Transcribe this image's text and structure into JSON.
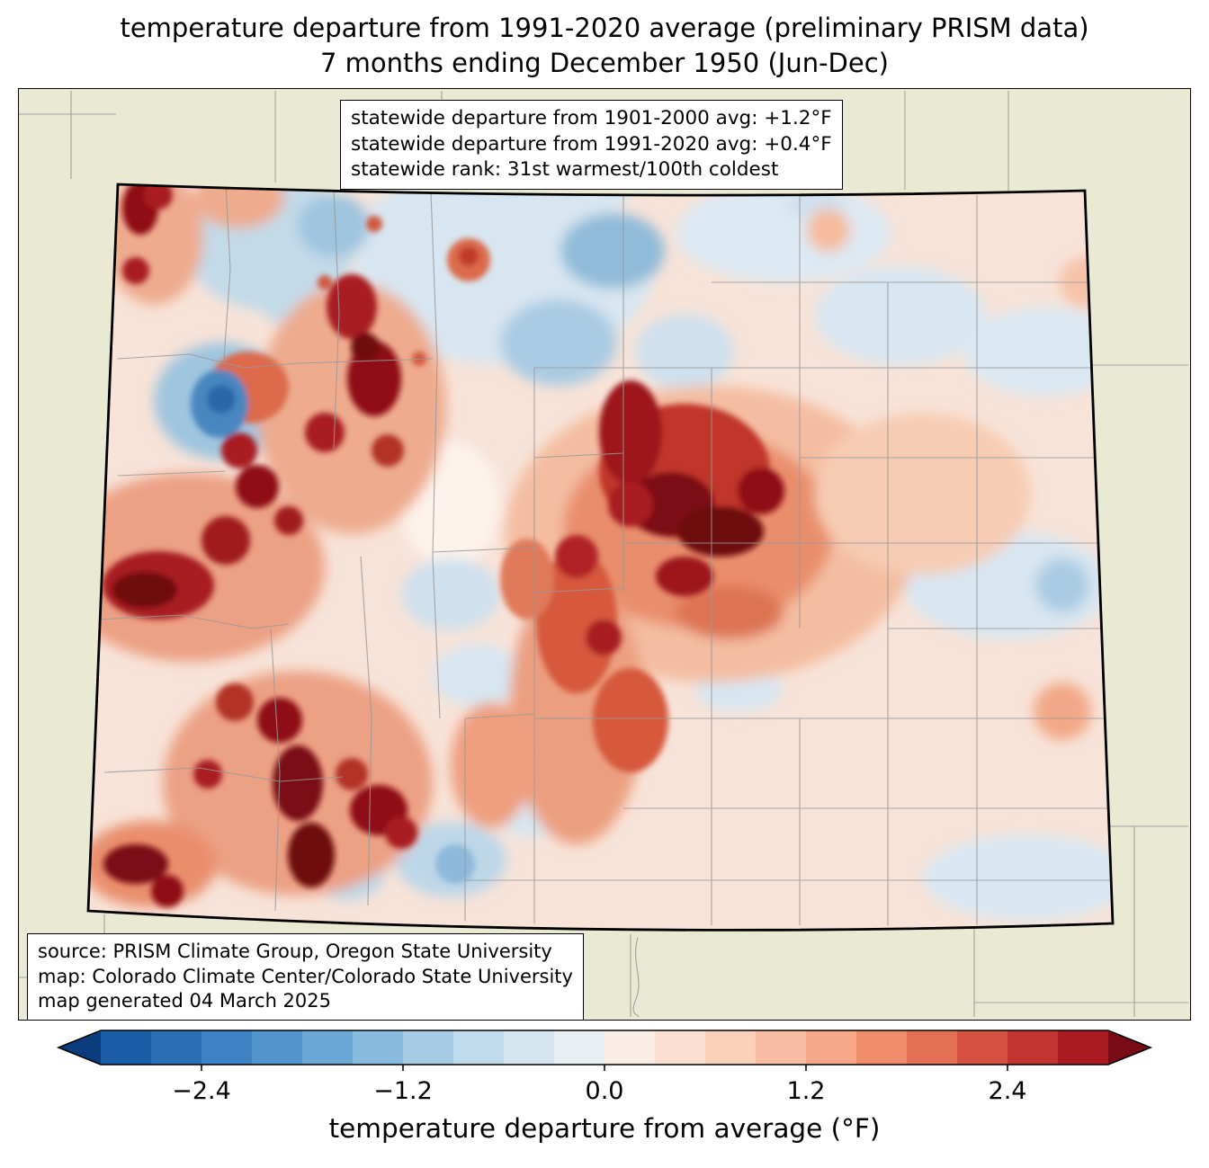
{
  "title": {
    "line1": "temperature departure from 1991-2020 average (preliminary PRISM data)",
    "line2": "7 months ending December 1950 (Jun-Dec)"
  },
  "stats_box": {
    "line1": "statewide departure from 1901-2000 avg: +1.2°F",
    "line2": "statewide departure from 1991-2020 avg: +0.4°F",
    "line3": "statewide rank: 31st warmest/100th coldest"
  },
  "source_box": {
    "line1": "source: PRISM Climate Group, Oregon State University",
    "line2": "map: Colorado Climate Center/Colorado State University",
    "line3": "map generated 04 March 2025"
  },
  "map": {
    "region": "Colorado",
    "background_color": "#e9e9d4",
    "county_line_color": "#999999",
    "state_border_color": "#000000"
  },
  "colorbar": {
    "label": "temperature departure from average (°F)",
    "ticks": [
      "−2.4",
      "−1.2",
      "0.0",
      "1.2",
      "2.4"
    ],
    "tick_values": [
      -2.4,
      -1.2,
      0.0,
      1.2,
      2.4
    ],
    "range": [
      -3.0,
      3.0
    ],
    "segment_colors": [
      "#1a5da6",
      "#2b6fb5",
      "#3c82c4",
      "#5295cd",
      "#6ba8d6",
      "#88bbde",
      "#a5cce4",
      "#c0dbec",
      "#d5e6f1",
      "#e9f0f4",
      "#f9ede5",
      "#fbdfd0",
      "#fbd0bb",
      "#f9bda3",
      "#f5a787",
      "#ef8d6c",
      "#e47054",
      "#d55142",
      "#c33431",
      "#ab1a22"
    ],
    "left_arrow_color": "#0b3d7e",
    "right_arrow_color": "#7a0a14"
  }
}
